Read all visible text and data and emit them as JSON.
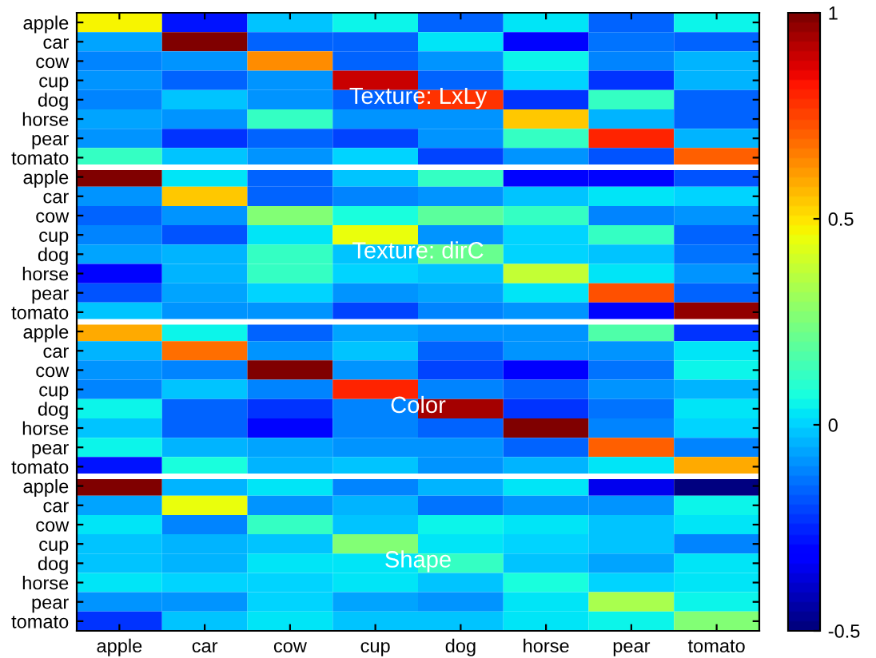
{
  "chart_data": {
    "type": "heatmap",
    "categories": [
      "apple",
      "car",
      "cow",
      "cup",
      "dog",
      "horse",
      "pear",
      "tomato"
    ],
    "y_categories": [
      "apple",
      "car",
      "cow",
      "cup",
      "dog",
      "horse",
      "pear",
      "tomato",
      "apple",
      "car",
      "cow",
      "cup",
      "dog",
      "horse",
      "pear",
      "tomato",
      "apple",
      "car",
      "cow",
      "cup",
      "dog",
      "horse",
      "pear",
      "tomato",
      "apple",
      "car",
      "cow",
      "cup",
      "dog",
      "horse",
      "pear",
      "tomato"
    ],
    "clim": [
      -0.5,
      1
    ],
    "cticks": [
      -0.5,
      0,
      0.5,
      1
    ],
    "annotations": [
      "Texture: LxLy",
      "Texture: dirC",
      "Color",
      "Shape"
    ],
    "cells": [
      [
        0.47,
        -0.27,
        -0.01,
        0.05,
        -0.15,
        0.02,
        -0.15,
        0.06
      ],
      [
        -0.07,
        1.0,
        -0.16,
        -0.16,
        0.02,
        -0.31,
        -0.14,
        -0.17
      ],
      [
        -0.11,
        -0.1,
        0.63,
        -0.16,
        -0.08,
        0.06,
        -0.12,
        -0.05
      ],
      [
        -0.1,
        -0.16,
        -0.1,
        0.9,
        -0.16,
        0.0,
        -0.22,
        -0.05
      ],
      [
        -0.12,
        -0.03,
        -0.1,
        -0.17,
        0.78,
        -0.22,
        0.13,
        -0.16
      ],
      [
        -0.07,
        -0.1,
        0.13,
        -0.1,
        -0.1,
        0.55,
        -0.05,
        -0.16
      ],
      [
        -0.09,
        -0.24,
        -0.17,
        -0.21,
        -0.08,
        0.11,
        0.81,
        -0.05
      ],
      [
        0.13,
        -0.01,
        -0.09,
        0.0,
        -0.21,
        -0.1,
        -0.19,
        0.71
      ],
      [
        1.0,
        0.03,
        -0.17,
        -0.03,
        0.13,
        -0.31,
        -0.31,
        -0.19
      ],
      [
        -0.09,
        0.55,
        -0.17,
        -0.11,
        -0.09,
        -0.03,
        0.02,
        0.0
      ],
      [
        -0.17,
        -0.1,
        0.25,
        0.08,
        0.18,
        0.11,
        -0.11,
        -0.1
      ],
      [
        -0.11,
        -0.19,
        0.02,
        0.44,
        -0.09,
        0.0,
        0.13,
        -0.16
      ],
      [
        -0.07,
        -0.05,
        0.13,
        -0.01,
        0.22,
        0.0,
        -0.03,
        -0.14
      ],
      [
        -0.29,
        -0.05,
        0.13,
        0.0,
        -0.03,
        0.39,
        0.02,
        -0.09
      ],
      [
        -0.19,
        -0.07,
        0.0,
        -0.09,
        -0.07,
        0.02,
        0.72,
        -0.17
      ],
      [
        -0.03,
        -0.08,
        -0.08,
        -0.21,
        -0.11,
        -0.08,
        -0.29,
        0.96
      ],
      [
        0.6,
        0.05,
        -0.15,
        -0.07,
        -0.08,
        -0.09,
        0.16,
        -0.23
      ],
      [
        -0.05,
        0.68,
        -0.08,
        -0.01,
        -0.17,
        -0.09,
        -0.08,
        0.02
      ],
      [
        -0.08,
        -0.12,
        1.0,
        -0.1,
        -0.21,
        -0.32,
        -0.14,
        0.05
      ],
      [
        -0.12,
        -0.03,
        -0.12,
        0.8,
        -0.12,
        -0.16,
        -0.1,
        -0.04
      ],
      [
        0.05,
        -0.15,
        -0.22,
        -0.11,
        0.93,
        -0.22,
        -0.14,
        0.02
      ],
      [
        -0.01,
        -0.15,
        -0.29,
        -0.11,
        -0.16,
        0.99,
        -0.12,
        0.0
      ],
      [
        0.05,
        -0.05,
        -0.07,
        -0.1,
        -0.08,
        -0.17,
        0.7,
        -0.11
      ],
      [
        -0.27,
        0.08,
        -0.04,
        -0.01,
        -0.1,
        -0.05,
        0.02,
        0.58
      ],
      [
        1.0,
        -0.05,
        0.02,
        -0.11,
        -0.05,
        0.03,
        -0.35,
        -0.48
      ],
      [
        -0.07,
        0.45,
        -0.09,
        -0.04,
        -0.14,
        -0.08,
        -0.09,
        0.05
      ],
      [
        0.02,
        -0.11,
        0.11,
        -0.01,
        0.05,
        0.02,
        -0.01,
        0.02
      ],
      [
        -0.01,
        -0.05,
        -0.01,
        0.25,
        0.02,
        0.0,
        -0.01,
        -0.11
      ],
      [
        -0.03,
        -0.05,
        0.02,
        0.02,
        0.13,
        -0.03,
        -0.07,
        0.02
      ],
      [
        0.02,
        0.0,
        0.0,
        0.02,
        -0.01,
        0.08,
        0.0,
        0.02
      ],
      [
        -0.1,
        -0.1,
        0.0,
        -0.07,
        -0.08,
        0.02,
        0.33,
        0.05
      ],
      [
        -0.22,
        -0.03,
        0.02,
        -0.03,
        -0.01,
        0.02,
        0.05,
        0.25
      ]
    ]
  }
}
